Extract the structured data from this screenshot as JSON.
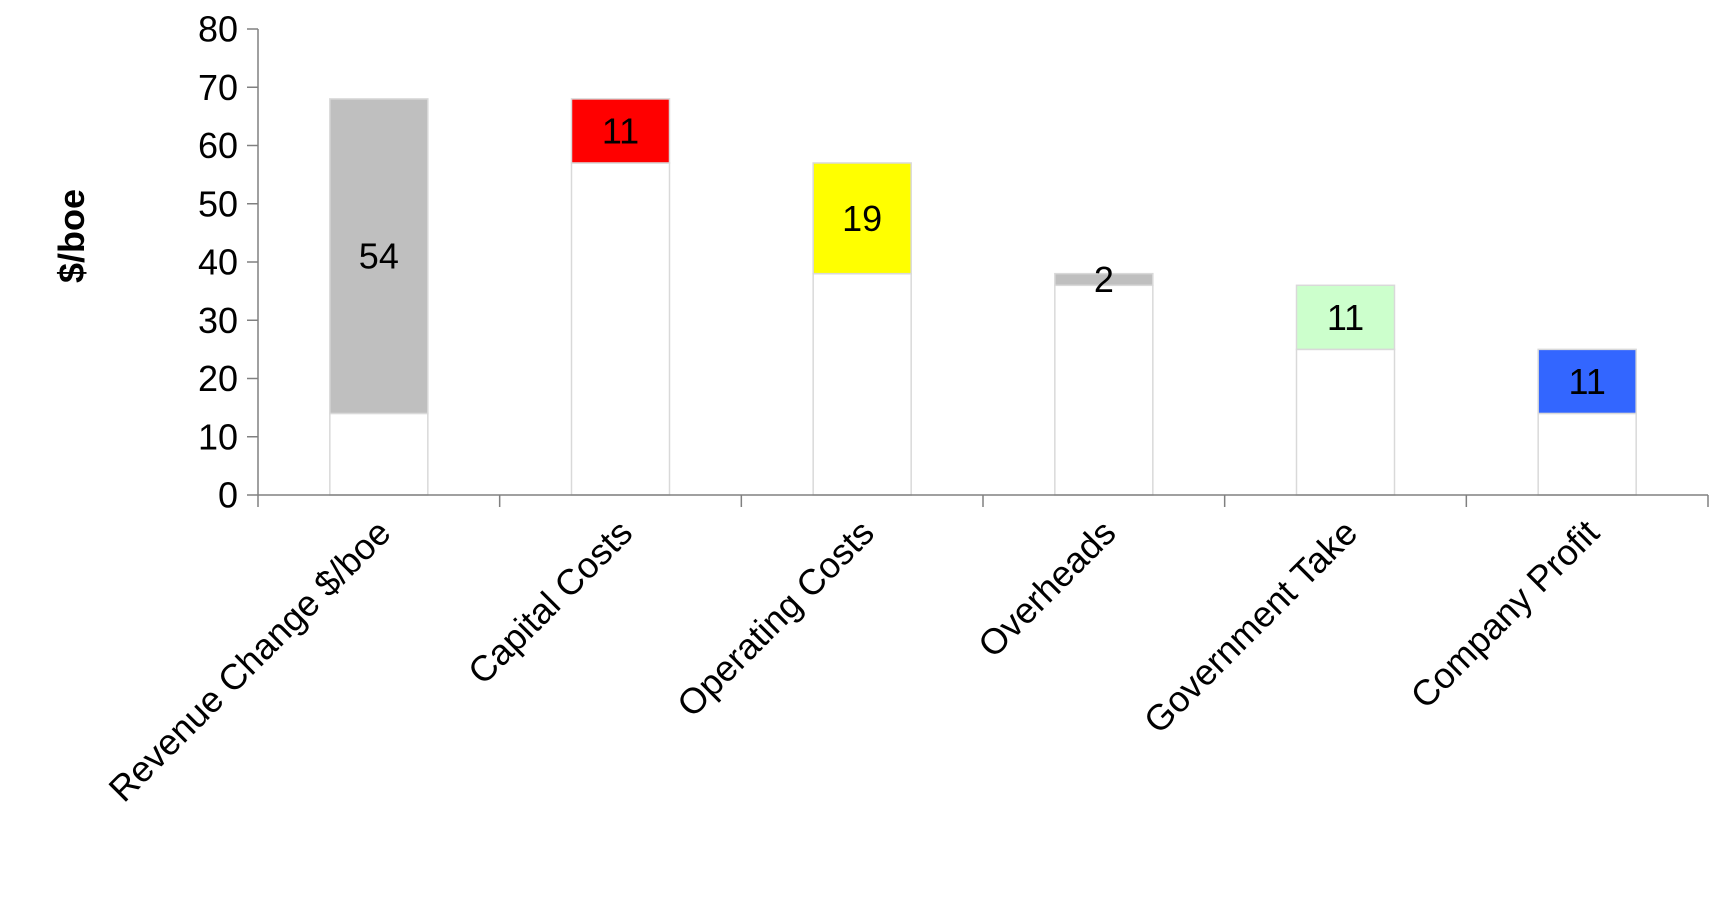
{
  "chart_data": {
    "type": "bar",
    "subtype": "waterfall",
    "ylabel": "$/boe",
    "xlabel": "",
    "title": "",
    "ylim": [
      0,
      80
    ],
    "yticks": [
      0,
      10,
      20,
      30,
      40,
      50,
      60,
      70,
      80
    ],
    "grid": false,
    "legend": "none",
    "categories": [
      "Revenue Change $/boe",
      "Capital Costs",
      "Operating Costs",
      "Overheads",
      "Government Take",
      "Company Profit"
    ],
    "bars": [
      {
        "base": 14,
        "value": 54,
        "label": "54",
        "color": "#BFBFBF"
      },
      {
        "base": 57,
        "value": 11,
        "label": "11",
        "color": "#FF0000"
      },
      {
        "base": 38,
        "value": 19,
        "label": "19",
        "color": "#FFFF00"
      },
      {
        "base": 36,
        "value": 2,
        "label": "2",
        "color": "#BFBFBF"
      },
      {
        "base": 25,
        "value": 11,
        "label": "11",
        "color": "#CCFFCC"
      },
      {
        "base": 14,
        "value": 11,
        "label": "11",
        "color": "#3366FF"
      }
    ],
    "base_fill": "#FFFFFF",
    "base_stroke": "#D9D9D9",
    "axis_color": "#808080"
  }
}
